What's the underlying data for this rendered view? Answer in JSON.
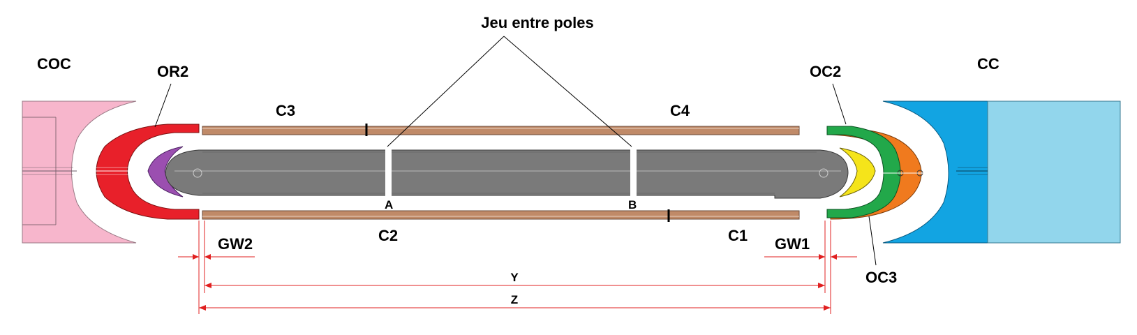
{
  "labels": {
    "title": "Jeu entre poles",
    "coc": "COC",
    "cc": "CC",
    "or2": "OR2",
    "oc2": "OC2",
    "oc3": "OC3",
    "c1": "C1",
    "c2": "C2",
    "c3": "C3",
    "c4": "C4",
    "gw1": "GW1",
    "gw2": "GW2",
    "point_a": "A",
    "point_b": "B",
    "dim_y": "Y",
    "dim_z": "Z"
  },
  "colors": {
    "coc_block": "#f7b6cc",
    "cc_block_dark": "#12a4e2",
    "cc_block_light": "#92d6ec",
    "or2_red": "#e8202a",
    "or2_purple": "#9b4fb0",
    "oc2_green": "#22a84a",
    "oc3_orange": "#f07a1e",
    "oc_yellow": "#f5e41a",
    "coil_brown": "#c08a68",
    "pole_grey": "#7a7a7a",
    "dimension_red": "#e02020"
  }
}
